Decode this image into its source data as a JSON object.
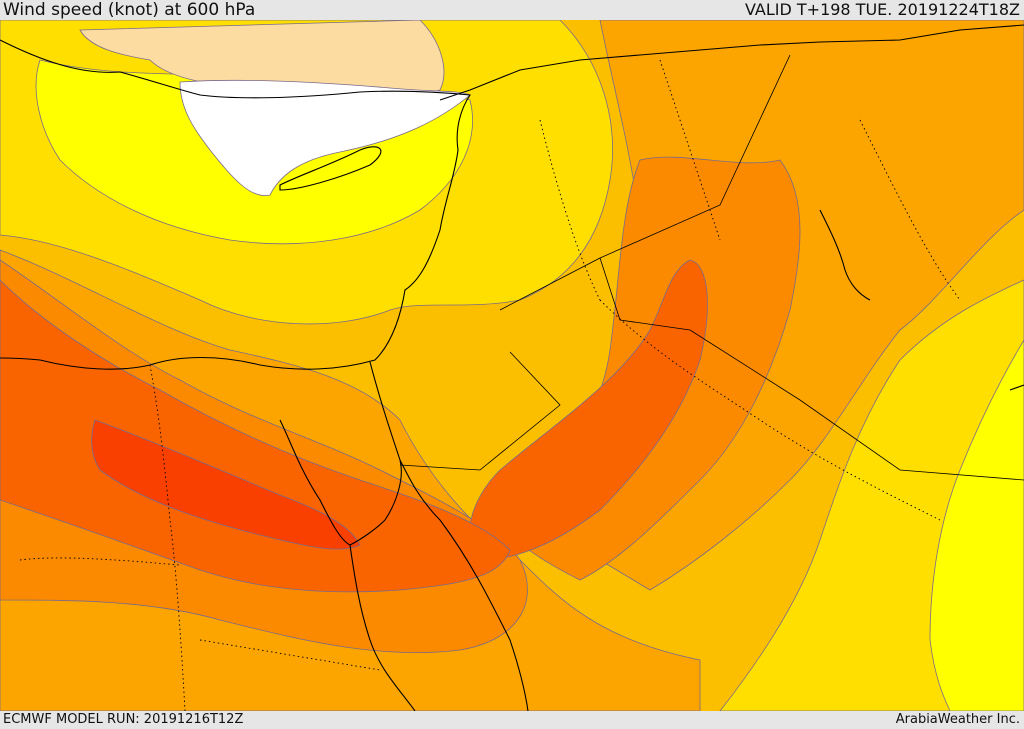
{
  "header": {
    "title": "Wind speed (knot) at 600 hPa",
    "valid": "VALID T+198 TUE. 20191224T18Z"
  },
  "footer": {
    "model_run": "ECMWF MODEL RUN: 20191216T12Z",
    "credit": "ArabiaWeather Inc."
  },
  "colors": {
    "band_0": "#ffffff",
    "band_1": "#fddca2",
    "band_2": "#ffff00",
    "band_3": "#ffdf00",
    "band_4": "#fcbf00",
    "band_5": "#fca500",
    "band_6": "#fb8a00",
    "band_7": "#fa6400",
    "band_8": "#f94000",
    "contour": "#7a6a8a",
    "coastline": "#000000",
    "border": "#000000"
  }
}
